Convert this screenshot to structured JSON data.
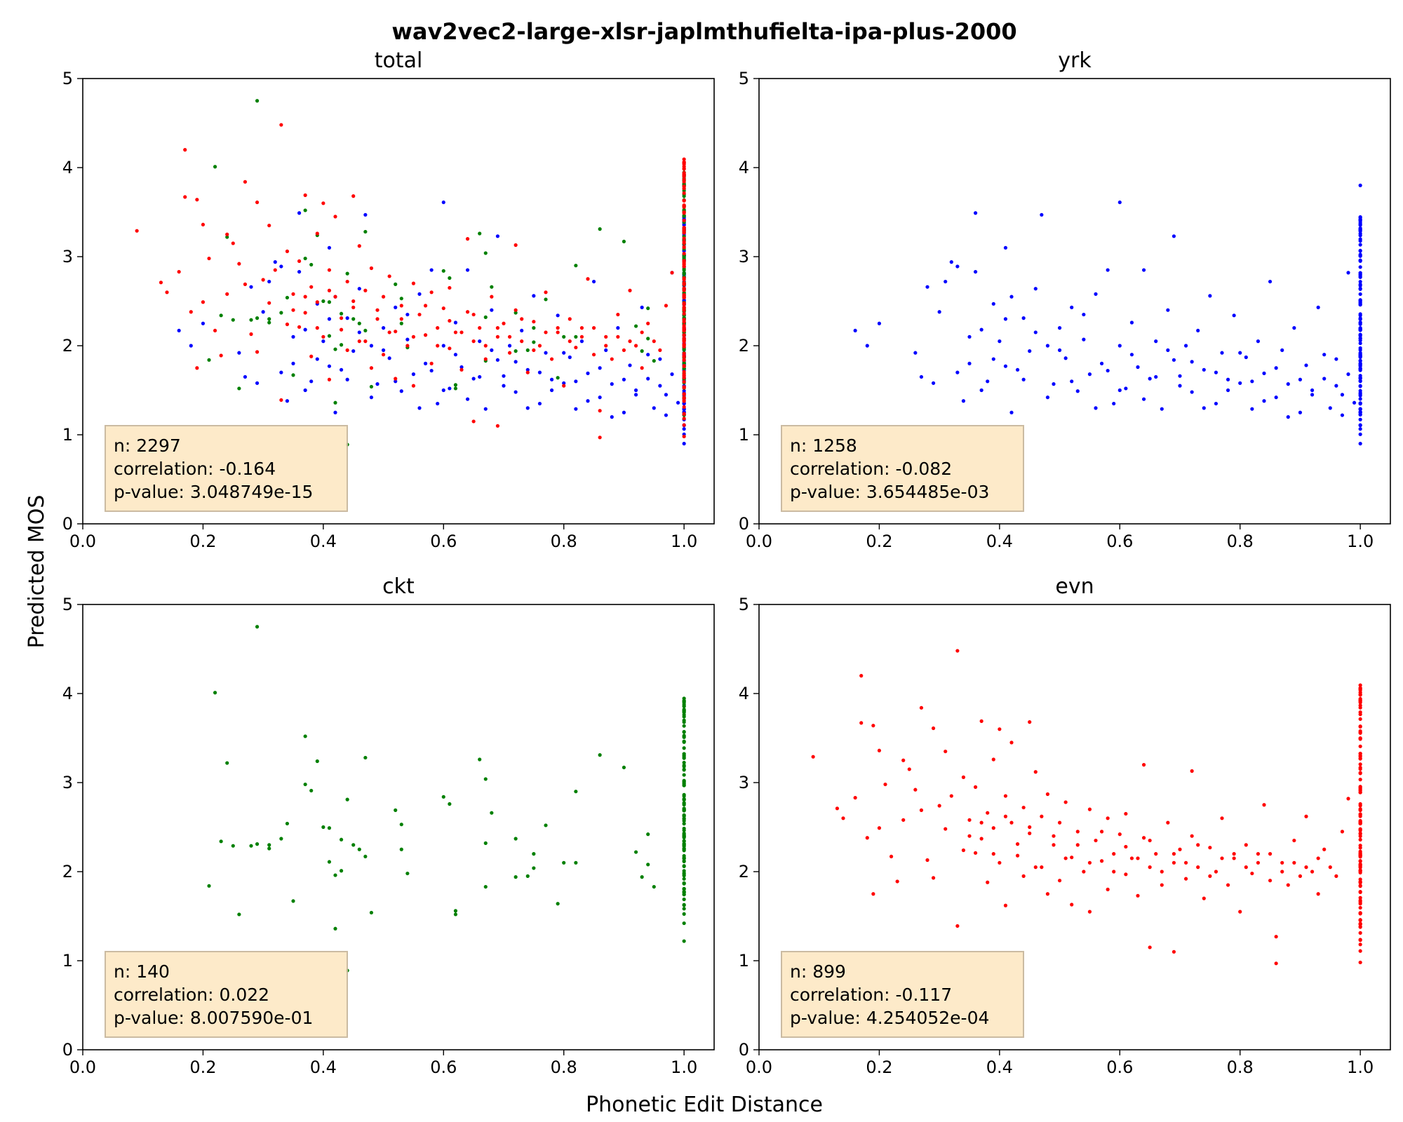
{
  "figure": {
    "title": "wav2vec2-large-xlsr-japlmthufielta-ipa-plus-2000",
    "xlabel": "Phonetic Edit Distance",
    "ylabel": "Predicted MOS"
  },
  "chart_data": [
    {
      "type": "scatter",
      "title": "total",
      "xlim": [
        0.0,
        1.05
      ],
      "ylim": [
        0,
        5
      ],
      "xticks": [
        "0.0",
        "0.2",
        "0.4",
        "0.6",
        "0.8",
        "1.0"
      ],
      "yticks": [
        "0",
        "1",
        "2",
        "3",
        "4",
        "5"
      ],
      "grid": false,
      "stats": {
        "n": "n: 2297",
        "correlation": "correlation: -0.164",
        "pvalue": "p-value: 3.048749e-15"
      },
      "series_refs": [
        "yrk",
        "ckt",
        "evn"
      ]
    },
    {
      "type": "scatter",
      "title": "yrk",
      "xlim": [
        0.0,
        1.05
      ],
      "ylim": [
        0,
        5
      ],
      "xticks": [
        "0.0",
        "0.2",
        "0.4",
        "0.6",
        "0.8",
        "1.0"
      ],
      "yticks": [
        "0",
        "1",
        "2",
        "3",
        "4",
        "5"
      ],
      "grid": false,
      "stats": {
        "n": "n: 1258",
        "correlation": "correlation: -0.082",
        "pvalue": "p-value: 3.654485e-03"
      },
      "series_refs": [
        "yrk"
      ]
    },
    {
      "type": "scatter",
      "title": "ckt",
      "xlim": [
        0.0,
        1.05
      ],
      "ylim": [
        0,
        5
      ],
      "xticks": [
        "0.0",
        "0.2",
        "0.4",
        "0.6",
        "0.8",
        "1.0"
      ],
      "yticks": [
        "0",
        "1",
        "2",
        "3",
        "4",
        "5"
      ],
      "grid": false,
      "stats": {
        "n": "n: 140",
        "correlation": "correlation: 0.022",
        "pvalue": "p-value: 8.007590e-01"
      },
      "series_refs": [
        "ckt"
      ]
    },
    {
      "type": "scatter",
      "title": "evn",
      "xlim": [
        0.0,
        1.05
      ],
      "ylim": [
        0,
        5
      ],
      "xticks": [
        "0.0",
        "0.2",
        "0.4",
        "0.6",
        "0.8",
        "1.0"
      ],
      "yticks": [
        "0",
        "1",
        "2",
        "3",
        "4",
        "5"
      ],
      "grid": false,
      "stats": {
        "n": "n: 899",
        "correlation": "correlation: -0.117",
        "pvalue": "p-value: 4.254052e-04"
      },
      "series_refs": [
        "evn"
      ]
    }
  ],
  "series": {
    "yrk": {
      "color": "#0000ff",
      "points": [
        [
          0.16,
          2.17
        ],
        [
          0.18,
          2.0
        ],
        [
          0.2,
          2.25
        ],
        [
          0.26,
          1.92
        ],
        [
          0.27,
          1.65
        ],
        [
          0.28,
          2.66
        ],
        [
          0.29,
          1.58
        ],
        [
          0.3,
          2.38
        ],
        [
          0.31,
          2.72
        ],
        [
          0.32,
          2.94
        ],
        [
          0.33,
          2.89
        ],
        [
          0.34,
          1.38
        ],
        [
          0.35,
          1.8
        ],
        [
          0.36,
          2.83
        ],
        [
          0.36,
          3.49
        ],
        [
          0.37,
          2.18
        ],
        [
          0.38,
          1.6
        ],
        [
          0.39,
          2.47
        ],
        [
          0.4,
          2.05
        ],
        [
          0.41,
          1.77
        ],
        [
          0.41,
          3.1
        ],
        [
          0.42,
          2.55
        ],
        [
          0.43,
          1.73
        ],
        [
          0.44,
          2.31
        ],
        [
          0.45,
          1.94
        ],
        [
          0.46,
          2.64
        ],
        [
          0.47,
          3.47
        ],
        [
          0.48,
          2.0
        ],
        [
          0.49,
          1.57
        ],
        [
          0.5,
          2.2
        ],
        [
          0.51,
          1.86
        ],
        [
          0.52,
          2.43
        ],
        [
          0.53,
          1.49
        ],
        [
          0.54,
          2.07
        ],
        [
          0.55,
          1.68
        ],
        [
          0.56,
          2.58
        ],
        [
          0.57,
          1.8
        ],
        [
          0.58,
          2.85
        ],
        [
          0.59,
          1.35
        ],
        [
          0.6,
          2.0
        ],
        [
          0.6,
          3.61
        ],
        [
          0.61,
          1.52
        ],
        [
          0.62,
          2.26
        ],
        [
          0.63,
          1.76
        ],
        [
          0.64,
          2.85
        ],
        [
          0.65,
          1.63
        ],
        [
          0.66,
          2.05
        ],
        [
          0.67,
          1.29
        ],
        [
          0.68,
          2.4
        ],
        [
          0.69,
          1.84
        ],
        [
          0.69,
          3.23
        ],
        [
          0.7,
          1.66
        ],
        [
          0.71,
          2.0
        ],
        [
          0.72,
          1.48
        ],
        [
          0.73,
          2.17
        ],
        [
          0.74,
          1.73
        ],
        [
          0.75,
          2.56
        ],
        [
          0.76,
          1.35
        ],
        [
          0.77,
          1.92
        ],
        [
          0.78,
          1.62
        ],
        [
          0.79,
          2.34
        ],
        [
          0.8,
          1.58
        ],
        [
          0.81,
          1.87
        ],
        [
          0.82,
          1.29
        ],
        [
          0.83,
          2.05
        ],
        [
          0.84,
          1.69
        ],
        [
          0.85,
          2.72
        ],
        [
          0.86,
          1.42
        ],
        [
          0.87,
          1.95
        ],
        [
          0.88,
          1.57
        ],
        [
          0.89,
          2.2
        ],
        [
          0.9,
          1.25
        ],
        [
          0.91,
          1.78
        ],
        [
          0.92,
          1.5
        ],
        [
          0.93,
          2.43
        ],
        [
          0.94,
          1.63
        ],
        [
          0.95,
          1.3
        ],
        [
          0.96,
          1.85
        ],
        [
          0.97,
          1.45
        ],
        [
          0.98,
          2.82
        ],
        [
          0.99,
          1.36
        ],
        [
          0.33,
          1.7
        ],
        [
          0.35,
          2.1
        ],
        [
          0.37,
          1.5
        ],
        [
          0.39,
          1.85
        ],
        [
          0.41,
          2.3
        ],
        [
          0.42,
          1.25
        ],
        [
          0.44,
          1.62
        ],
        [
          0.46,
          2.15
        ],
        [
          0.48,
          1.42
        ],
        [
          0.5,
          1.95
        ],
        [
          0.52,
          1.6
        ],
        [
          0.54,
          2.35
        ],
        [
          0.56,
          1.3
        ],
        [
          0.58,
          1.72
        ],
        [
          0.6,
          1.5
        ],
        [
          0.62,
          1.9
        ],
        [
          0.64,
          1.4
        ],
        [
          0.66,
          1.65
        ],
        [
          0.68,
          1.95
        ],
        [
          0.7,
          1.55
        ],
        [
          0.72,
          1.82
        ],
        [
          0.74,
          1.3
        ],
        [
          0.76,
          1.7
        ],
        [
          0.78,
          1.5
        ],
        [
          0.8,
          1.92
        ],
        [
          0.82,
          1.6
        ],
        [
          0.84,
          1.38
        ],
        [
          0.86,
          1.75
        ],
        [
          0.88,
          1.2
        ],
        [
          0.9,
          1.62
        ],
        [
          0.92,
          1.45
        ],
        [
          0.94,
          1.9
        ],
        [
          0.96,
          1.55
        ],
        [
          0.97,
          1.22
        ],
        [
          0.98,
          1.68
        ]
      ],
      "vertical": {
        "x": 1.0,
        "ymin": 0.9,
        "ymax": 3.45,
        "outliers": [
          3.8,
          3.44
        ]
      }
    },
    "ckt": {
      "color": "#008000",
      "points": [
        [
          0.21,
          1.84
        ],
        [
          0.22,
          4.01
        ],
        [
          0.23,
          2.34
        ],
        [
          0.24,
          3.22
        ],
        [
          0.25,
          2.29
        ],
        [
          0.26,
          1.52
        ],
        [
          0.28,
          2.29
        ],
        [
          0.29,
          4.75
        ],
        [
          0.29,
          2.31
        ],
        [
          0.31,
          2.26
        ],
        [
          0.31,
          2.3
        ],
        [
          0.33,
          2.37
        ],
        [
          0.34,
          2.54
        ],
        [
          0.35,
          1.67
        ],
        [
          0.37,
          3.52
        ],
        [
          0.37,
          2.98
        ],
        [
          0.38,
          2.91
        ],
        [
          0.39,
          3.24
        ],
        [
          0.4,
          2.5
        ],
        [
          0.41,
          2.49
        ],
        [
          0.41,
          2.11
        ],
        [
          0.42,
          1.96
        ],
        [
          0.42,
          1.36
        ],
        [
          0.43,
          2.01
        ],
        [
          0.43,
          2.36
        ],
        [
          0.44,
          0.89
        ],
        [
          0.44,
          2.81
        ],
        [
          0.45,
          2.3
        ],
        [
          0.46,
          2.25
        ],
        [
          0.47,
          3.28
        ],
        [
          0.47,
          2.17
        ],
        [
          0.48,
          1.54
        ],
        [
          0.52,
          2.69
        ],
        [
          0.53,
          2.53
        ],
        [
          0.53,
          2.25
        ],
        [
          0.54,
          1.98
        ],
        [
          0.6,
          2.84
        ],
        [
          0.61,
          2.76
        ],
        [
          0.62,
          1.52
        ],
        [
          0.62,
          1.56
        ],
        [
          0.66,
          3.26
        ],
        [
          0.67,
          3.04
        ],
        [
          0.67,
          2.32
        ],
        [
          0.67,
          1.83
        ],
        [
          0.68,
          2.66
        ],
        [
          0.72,
          1.94
        ],
        [
          0.72,
          2.37
        ],
        [
          0.74,
          1.95
        ],
        [
          0.75,
          2.04
        ],
        [
          0.75,
          2.2
        ],
        [
          0.77,
          2.52
        ],
        [
          0.79,
          1.64
        ],
        [
          0.8,
          2.1
        ],
        [
          0.82,
          2.9
        ],
        [
          0.82,
          2.1
        ],
        [
          0.86,
          3.31
        ],
        [
          0.9,
          3.17
        ],
        [
          0.92,
          2.22
        ],
        [
          0.93,
          1.94
        ],
        [
          0.94,
          2.08
        ],
        [
          0.95,
          1.83
        ],
        [
          0.94,
          2.42
        ]
      ],
      "vertical": {
        "x": 1.0,
        "ymin": 1.42,
        "ymax": 3.95,
        "outliers": [
          1.22
        ]
      }
    },
    "evn": {
      "color": "#ff0000",
      "points": [
        [
          0.09,
          3.29
        ],
        [
          0.13,
          2.71
        ],
        [
          0.14,
          2.6
        ],
        [
          0.16,
          2.83
        ],
        [
          0.17,
          4.2
        ],
        [
          0.17,
          3.67
        ],
        [
          0.18,
          2.38
        ],
        [
          0.19,
          3.64
        ],
        [
          0.19,
          1.75
        ],
        [
          0.2,
          3.36
        ],
        [
          0.2,
          2.49
        ],
        [
          0.21,
          2.98
        ],
        [
          0.22,
          2.17
        ],
        [
          0.23,
          1.89
        ],
        [
          0.24,
          2.58
        ],
        [
          0.24,
          3.25
        ],
        [
          0.25,
          3.15
        ],
        [
          0.26,
          2.92
        ],
        [
          0.27,
          3.84
        ],
        [
          0.27,
          2.69
        ],
        [
          0.28,
          2.13
        ],
        [
          0.29,
          3.61
        ],
        [
          0.29,
          1.93
        ],
        [
          0.3,
          2.74
        ],
        [
          0.31,
          3.35
        ],
        [
          0.31,
          2.48
        ],
        [
          0.32,
          2.85
        ],
        [
          0.33,
          4.48
        ],
        [
          0.33,
          1.39
        ],
        [
          0.34,
          2.24
        ],
        [
          0.34,
          3.06
        ],
        [
          0.35,
          2.58
        ],
        [
          0.36,
          2.21
        ],
        [
          0.36,
          2.95
        ],
        [
          0.37,
          3.69
        ],
        [
          0.37,
          2.37
        ],
        [
          0.38,
          2.66
        ],
        [
          0.38,
          1.88
        ],
        [
          0.39,
          3.26
        ],
        [
          0.39,
          2.49
        ],
        [
          0.4,
          3.6
        ],
        [
          0.4,
          2.1
        ],
        [
          0.41,
          2.85
        ],
        [
          0.41,
          1.62
        ],
        [
          0.42,
          2.55
        ],
        [
          0.42,
          3.45
        ],
        [
          0.43,
          2.31
        ],
        [
          0.44,
          2.72
        ],
        [
          0.44,
          1.95
        ],
        [
          0.45,
          3.68
        ],
        [
          0.45,
          2.43
        ],
        [
          0.46,
          3.12
        ],
        [
          0.46,
          2.05
        ],
        [
          0.47,
          2.62
        ],
        [
          0.48,
          1.75
        ],
        [
          0.48,
          2.87
        ],
        [
          0.49,
          2.3
        ],
        [
          0.5,
          2.55
        ],
        [
          0.5,
          1.9
        ],
        [
          0.51,
          2.78
        ],
        [
          0.52,
          2.16
        ],
        [
          0.52,
          1.63
        ],
        [
          0.53,
          2.45
        ],
        [
          0.54,
          2.0
        ],
        [
          0.55,
          2.7
        ],
        [
          0.55,
          1.55
        ],
        [
          0.56,
          2.35
        ],
        [
          0.57,
          2.12
        ],
        [
          0.58,
          1.8
        ],
        [
          0.58,
          2.6
        ],
        [
          0.59,
          2.2
        ],
        [
          0.6,
          2.42
        ],
        [
          0.61,
          1.97
        ],
        [
          0.61,
          2.65
        ],
        [
          0.62,
          2.15
        ],
        [
          0.63,
          1.73
        ],
        [
          0.64,
          2.38
        ],
        [
          0.64,
          3.2
        ],
        [
          0.65,
          1.15
        ],
        [
          0.65,
          2.05
        ],
        [
          0.66,
          2.2
        ],
        [
          0.67,
          1.85
        ],
        [
          0.68,
          2.55
        ],
        [
          0.69,
          2.1
        ],
        [
          0.69,
          1.1
        ],
        [
          0.7,
          2.25
        ],
        [
          0.71,
          1.92
        ],
        [
          0.72,
          2.4
        ],
        [
          0.72,
          3.13
        ],
        [
          0.73,
          2.05
        ],
        [
          0.74,
          1.7
        ],
        [
          0.75,
          2.27
        ],
        [
          0.76,
          2.0
        ],
        [
          0.77,
          2.6
        ],
        [
          0.78,
          1.85
        ],
        [
          0.79,
          2.15
        ],
        [
          0.8,
          1.55
        ],
        [
          0.81,
          2.3
        ],
        [
          0.82,
          1.98
        ],
        [
          0.83,
          2.2
        ],
        [
          0.84,
          2.75
        ],
        [
          0.85,
          1.9
        ],
        [
          0.86,
          0.97
        ],
        [
          0.86,
          1.27
        ],
        [
          0.87,
          2.1
        ],
        [
          0.88,
          1.85
        ],
        [
          0.89,
          2.35
        ],
        [
          0.9,
          1.95
        ],
        [
          0.91,
          2.62
        ],
        [
          0.92,
          2.0
        ],
        [
          0.93,
          1.75
        ],
        [
          0.94,
          2.25
        ],
        [
          0.95,
          2.05
        ],
        [
          0.96,
          1.95
        ],
        [
          0.97,
          2.45
        ],
        [
          0.98,
          2.82
        ],
        [
          0.35,
          2.4
        ],
        [
          0.37,
          2.55
        ],
        [
          0.39,
          2.2
        ],
        [
          0.41,
          2.62
        ],
        [
          0.43,
          2.18
        ],
        [
          0.45,
          2.5
        ],
        [
          0.47,
          2.05
        ],
        [
          0.49,
          2.4
        ],
        [
          0.51,
          2.15
        ],
        [
          0.53,
          2.3
        ],
        [
          0.55,
          2.1
        ],
        [
          0.57,
          2.45
        ],
        [
          0.59,
          2.0
        ],
        [
          0.61,
          2.28
        ],
        [
          0.63,
          2.15
        ],
        [
          0.65,
          2.35
        ],
        [
          0.67,
          2.0
        ],
        [
          0.69,
          2.2
        ],
        [
          0.71,
          2.1
        ],
        [
          0.73,
          2.3
        ],
        [
          0.75,
          1.95
        ],
        [
          0.77,
          2.15
        ],
        [
          0.79,
          2.2
        ],
        [
          0.81,
          2.05
        ],
        [
          0.83,
          2.1
        ],
        [
          0.85,
          2.2
        ],
        [
          0.87,
          2.0
        ],
        [
          0.89,
          2.1
        ],
        [
          0.91,
          2.05
        ],
        [
          0.93,
          2.15
        ]
      ],
      "vertical": {
        "x": 1.0,
        "ymin": 0.98,
        "ymax": 4.1,
        "outliers": []
      }
    }
  }
}
